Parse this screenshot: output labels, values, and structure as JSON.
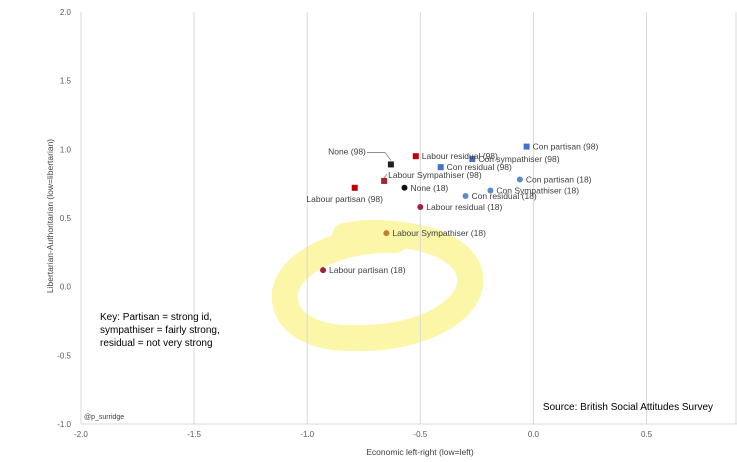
{
  "chart_data": {
    "type": "scatter",
    "title": "",
    "xlabel": "Economic left-right (low=left)",
    "ylabel": "Libertarian-Authoritarian (low=libertarian)",
    "xlim": [
      -2.0,
      0.9
    ],
    "ylim": [
      -1.0,
      2.0
    ],
    "x_ticks": [
      "-2.0",
      "-1.5",
      "-1.0",
      "-0.5",
      "0.0",
      "0.5"
    ],
    "x_tick_values": [
      -2.0,
      -1.5,
      -1.0,
      -0.5,
      0.0,
      0.5
    ],
    "y_ticks": [
      "2.0",
      "1.5",
      "1.0",
      "0.5",
      "0.0",
      "-0.5",
      "-1.0"
    ],
    "y_tick_values": [
      2.0,
      1.5,
      1.0,
      0.5,
      0.0,
      -0.5,
      -1.0
    ],
    "grid": "vertical",
    "points": [
      {
        "label": "Con partisan (98)",
        "x": -0.03,
        "y": 1.02,
        "color": "#4472c4",
        "shape": "square",
        "label_side": "right"
      },
      {
        "label": "Con sympathiser (98)",
        "x": -0.27,
        "y": 0.93,
        "color": "#4472c4",
        "shape": "square",
        "label_side": "right"
      },
      {
        "label": "Con residual (98)",
        "x": -0.41,
        "y": 0.87,
        "color": "#4472c4",
        "shape": "square",
        "label_side": "right"
      },
      {
        "label": "Labour residual (98)",
        "x": -0.52,
        "y": 0.95,
        "color": "#c00000",
        "shape": "square",
        "label_side": "right"
      },
      {
        "label": "None (98)",
        "x": -0.63,
        "y": 0.89,
        "color": "#1f1f1f",
        "shape": "square",
        "label_side": "left-up"
      },
      {
        "label": "Labour Sympathiser (98)",
        "x": -0.66,
        "y": 0.77,
        "color": "#a02830",
        "shape": "square",
        "label_side": "right-up"
      },
      {
        "label": "Labour partisan (98)",
        "x": -0.79,
        "y": 0.72,
        "color": "#c00000",
        "shape": "square",
        "label_side": "below"
      },
      {
        "label": "Con partisan (18)",
        "x": -0.06,
        "y": 0.78,
        "color": "#5b8bc9",
        "shape": "circle",
        "label_side": "right"
      },
      {
        "label": "Con Sympathiser (18)",
        "x": -0.19,
        "y": 0.7,
        "color": "#5b8bc9",
        "shape": "circle",
        "label_side": "right"
      },
      {
        "label": "Con residual (18)",
        "x": -0.3,
        "y": 0.66,
        "color": "#5b8bc9",
        "shape": "circle",
        "label_side": "right"
      },
      {
        "label": "None (18)",
        "x": -0.57,
        "y": 0.72,
        "color": "#111111",
        "shape": "circle",
        "label_side": "right"
      },
      {
        "label": "Labour residual (18)",
        "x": -0.5,
        "y": 0.58,
        "color": "#a02040",
        "shape": "circle",
        "label_side": "right"
      },
      {
        "label": "Labour Sympathiser (18)",
        "x": -0.65,
        "y": 0.39,
        "color": "#c08030",
        "shape": "circle",
        "label_side": "right"
      },
      {
        "label": "Labour partisan (18)",
        "x": -0.93,
        "y": 0.12,
        "color": "#a02040",
        "shape": "circle",
        "label_side": "right"
      }
    ]
  },
  "annotations": {
    "key_lines": [
      "Key:  Partisan = strong id,",
      "sympathiser  = fairly strong,",
      "residual = not very strong"
    ],
    "source": "Source: British Social Attitudes Survey",
    "credit": "@p_surridge"
  }
}
